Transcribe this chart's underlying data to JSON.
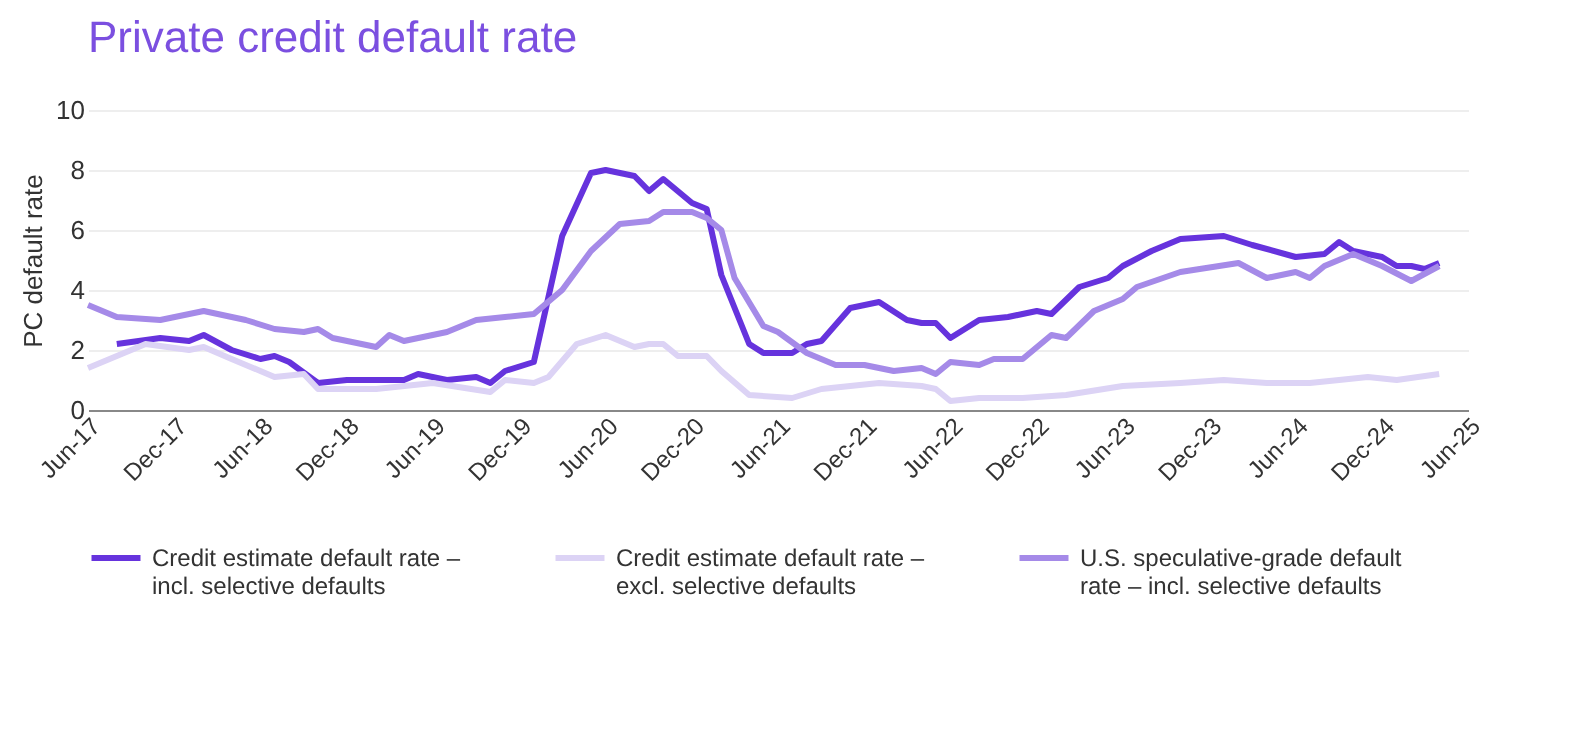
{
  "chart_data": {
    "type": "line",
    "title": "Private credit default rate",
    "ylabel": "PC default rate",
    "xlim": [
      "2017-06",
      "2025-06"
    ],
    "xticks": [
      {
        "value": "2017-06",
        "label": "Jun-17"
      },
      {
        "value": "2017-12",
        "label": "Dec-17"
      },
      {
        "value": "2018-06",
        "label": "Jun-18"
      },
      {
        "value": "2018-12",
        "label": "Dec-18"
      },
      {
        "value": "2019-06",
        "label": "Jun-19"
      },
      {
        "value": "2019-12",
        "label": "Dec-19"
      },
      {
        "value": "2020-06",
        "label": "Jun-20"
      },
      {
        "value": "2020-12",
        "label": "Dec-20"
      },
      {
        "value": "2021-06",
        "label": "Jun-21"
      },
      {
        "value": "2021-12",
        "label": "Dec-21"
      },
      {
        "value": "2022-06",
        "label": "Jun-22"
      },
      {
        "value": "2022-12",
        "label": "Dec-22"
      },
      {
        "value": "2023-06",
        "label": "Jun-23"
      },
      {
        "value": "2023-12",
        "label": "Dec-23"
      },
      {
        "value": "2024-06",
        "label": "Jun-24"
      },
      {
        "value": "2024-12",
        "label": "Dec-24"
      },
      {
        "value": "2025-06",
        "label": "Jun-25"
      }
    ],
    "ylim": [
      0,
      10
    ],
    "yticks": [
      0,
      2,
      4,
      6,
      8,
      10
    ],
    "grid": "y",
    "legend": "bottom",
    "marker": "none",
    "line_style": "solid",
    "series": [
      {
        "name": "Credit estimate default rate – incl. selective defaults",
        "color": "#6633dd",
        "x": [
          "2017-08",
          "2017-11",
          "2018-01",
          "2018-02",
          "2018-04",
          "2018-06",
          "2018-07",
          "2018-08",
          "2018-10",
          "2018-12",
          "2019-04",
          "2019-05",
          "2019-07",
          "2019-09",
          "2019-10",
          "2019-11",
          "2020-01",
          "2020-03",
          "2020-05",
          "2020-06",
          "2020-08",
          "2020-09",
          "2020-10",
          "2020-12",
          "2021-01",
          "2021-02",
          "2021-04",
          "2021-05",
          "2021-07",
          "2021-08",
          "2021-09",
          "2021-11",
          "2022-01",
          "2022-03",
          "2022-04",
          "2022-05",
          "2022-06",
          "2022-08",
          "2022-10",
          "2022-12",
          "2023-01",
          "2023-03",
          "2023-05",
          "2023-06",
          "2023-08",
          "2023-10",
          "2024-01",
          "2024-03",
          "2024-06",
          "2024-08",
          "2024-09",
          "2024-10",
          "2024-12",
          "2025-01",
          "2025-02",
          "2025-03",
          "2025-04"
        ],
        "values": [
          2.2,
          2.4,
          2.3,
          2.5,
          2.0,
          1.7,
          1.8,
          1.6,
          0.9,
          1.0,
          1.0,
          1.2,
          1.0,
          1.1,
          0.9,
          1.3,
          1.6,
          5.8,
          7.9,
          8.0,
          7.8,
          7.3,
          7.7,
          6.9,
          6.7,
          4.5,
          2.2,
          1.9,
          1.9,
          2.2,
          2.3,
          3.4,
          3.6,
          3.0,
          2.9,
          2.9,
          2.4,
          3.0,
          3.1,
          3.3,
          3.2,
          4.1,
          4.4,
          4.8,
          5.3,
          5.7,
          5.8,
          5.5,
          5.1,
          5.2,
          5.6,
          5.3,
          5.1,
          4.8,
          4.8,
          4.7,
          4.9
        ]
      },
      {
        "name": "Credit estimate default rate – excl. selective defaults",
        "color": "#dcd3f5",
        "x": [
          "2017-06",
          "2017-08",
          "2017-10",
          "2018-01",
          "2018-02",
          "2018-04",
          "2018-06",
          "2018-07",
          "2018-09",
          "2018-10",
          "2019-02",
          "2019-06",
          "2019-10",
          "2019-11",
          "2020-01",
          "2020-02",
          "2020-04",
          "2020-06",
          "2020-08",
          "2020-09",
          "2020-10",
          "2020-11",
          "2021-01",
          "2021-02",
          "2021-04",
          "2021-07",
          "2021-09",
          "2022-01",
          "2022-04",
          "2022-05",
          "2022-06",
          "2022-08",
          "2022-11",
          "2023-02",
          "2023-06",
          "2023-10",
          "2024-01",
          "2024-04",
          "2024-07",
          "2024-09",
          "2024-11",
          "2025-01",
          "2025-04"
        ],
        "values": [
          1.4,
          1.8,
          2.2,
          2.0,
          2.1,
          1.7,
          1.3,
          1.1,
          1.2,
          0.7,
          0.7,
          0.9,
          0.6,
          1.0,
          0.9,
          1.1,
          2.2,
          2.5,
          2.1,
          2.2,
          2.2,
          1.8,
          1.8,
          1.3,
          0.5,
          0.4,
          0.7,
          0.9,
          0.8,
          0.7,
          0.3,
          0.4,
          0.4,
          0.5,
          0.8,
          0.9,
          1.0,
          0.9,
          0.9,
          1.0,
          1.1,
          1.0,
          1.2
        ]
      },
      {
        "name": "U.S. speculative-grade default rate – incl. selective defaults",
        "color": "#a58ae8",
        "x": [
          "2017-06",
          "2017-08",
          "2017-11",
          "2018-02",
          "2018-05",
          "2018-07",
          "2018-09",
          "2018-10",
          "2018-11",
          "2019-02",
          "2019-03",
          "2019-04",
          "2019-07",
          "2019-09",
          "2019-11",
          "2020-01",
          "2020-03",
          "2020-05",
          "2020-07",
          "2020-09",
          "2020-10",
          "2020-12",
          "2021-01",
          "2021-02",
          "2021-03",
          "2021-05",
          "2021-06",
          "2021-08",
          "2021-10",
          "2021-12",
          "2022-02",
          "2022-04",
          "2022-05",
          "2022-06",
          "2022-08",
          "2022-09",
          "2022-11",
          "2023-01",
          "2023-02",
          "2023-04",
          "2023-06",
          "2023-07",
          "2023-10",
          "2024-02",
          "2024-04",
          "2024-06",
          "2024-07",
          "2024-08",
          "2024-10",
          "2024-12",
          "2025-02",
          "2025-04"
        ],
        "values": [
          3.5,
          3.1,
          3.0,
          3.3,
          3.0,
          2.7,
          2.6,
          2.7,
          2.4,
          2.1,
          2.5,
          2.3,
          2.6,
          3.0,
          3.1,
          3.2,
          4.0,
          5.3,
          6.2,
          6.3,
          6.6,
          6.6,
          6.4,
          6.0,
          4.4,
          2.8,
          2.6,
          1.9,
          1.5,
          1.5,
          1.3,
          1.4,
          1.2,
          1.6,
          1.5,
          1.7,
          1.7,
          2.5,
          2.4,
          3.3,
          3.7,
          4.1,
          4.6,
          4.9,
          4.4,
          4.6,
          4.4,
          4.8,
          5.2,
          4.8,
          4.3,
          4.8
        ]
      }
    ]
  }
}
